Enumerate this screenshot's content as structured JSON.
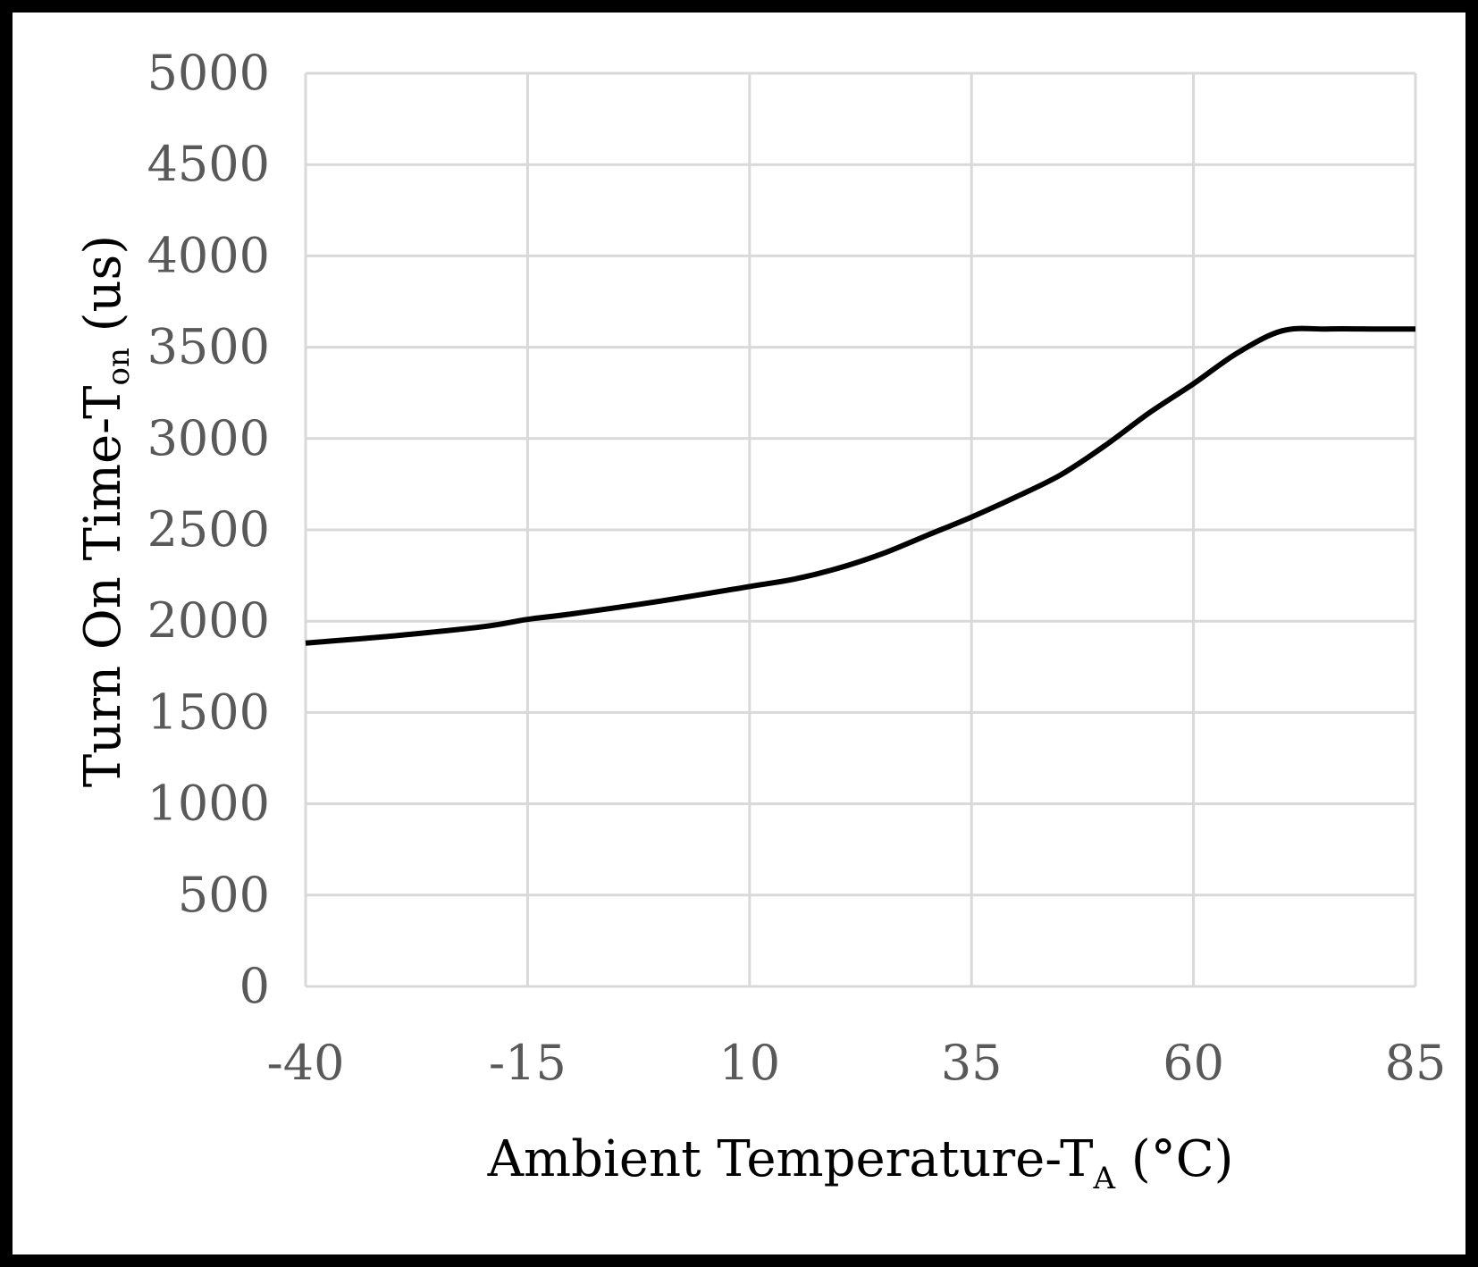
{
  "chart_data": {
    "type": "line",
    "title": "",
    "xlabel": {
      "main": "Ambient Temperature-T",
      "sub": "A",
      "suffix": " (°C)"
    },
    "ylabel": {
      "main": "Turn On Time-T",
      "sub": "on",
      "suffix": " (us)"
    },
    "xlim": [
      -40,
      85
    ],
    "ylim": [
      0,
      5000
    ],
    "x_ticks": [
      -40,
      -15,
      10,
      35,
      60,
      85
    ],
    "x_tick_labels": [
      "-40",
      "-15",
      "10",
      "35",
      "60",
      "85"
    ],
    "y_ticks": [
      0,
      500,
      1000,
      1500,
      2000,
      2500,
      3000,
      3500,
      4000,
      4500,
      5000
    ],
    "y_tick_labels": [
      "0",
      "500",
      "1000",
      "1500",
      "2000",
      "2500",
      "3000",
      "3500",
      "4000",
      "4500",
      "5000"
    ],
    "grid": true,
    "legend": "none",
    "series": [
      {
        "name": "Turn On Time",
        "color": "#000000",
        "x": [
          -40,
          -30,
          -20,
          -15,
          -10,
          0,
          10,
          15,
          20,
          25,
          30,
          35,
          40,
          45,
          50,
          55,
          60,
          65,
          70,
          75,
          80,
          85
        ],
        "values": [
          1880,
          1920,
          1970,
          2010,
          2040,
          2110,
          2190,
          2230,
          2290,
          2370,
          2470,
          2570,
          2680,
          2800,
          2960,
          3140,
          3300,
          3470,
          3590,
          3600,
          3600,
          3600
        ]
      }
    ]
  }
}
